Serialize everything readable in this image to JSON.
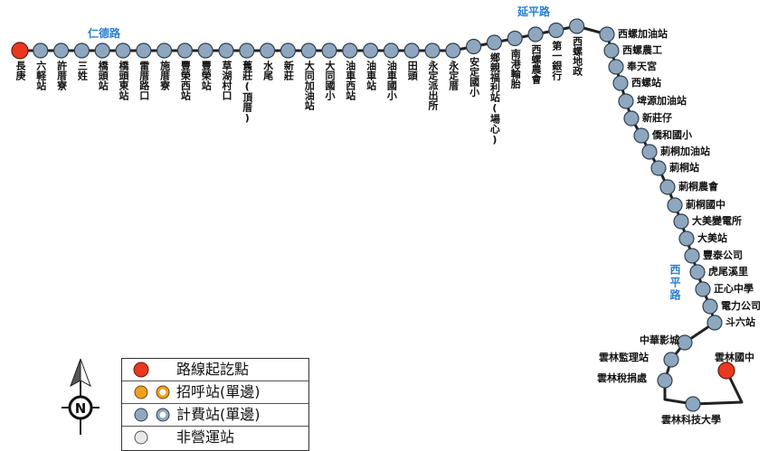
{
  "colors": {
    "route_line": "#222222",
    "stop_fill": "#8ea7bf",
    "stop_stroke": "#2f3f52",
    "terminal_fill": "#e8381f",
    "hail_fill": "#f0a020",
    "inactive_fill": "#e8e8e8",
    "road_label": "#2a7fd0"
  },
  "roads": {
    "rende": "仁德路",
    "yanping": "延平路",
    "xiping": "西平路"
  },
  "stops_top": [
    {
      "name": "長庚",
      "type": "terminal"
    },
    {
      "name": "六軽站",
      "type": "fare"
    },
    {
      "name": "許厝寮",
      "type": "fare"
    },
    {
      "name": "三姓",
      "type": "fare"
    },
    {
      "name": "橋頭站",
      "type": "fare"
    },
    {
      "name": "橋頭東站",
      "type": "fare"
    },
    {
      "name": "雷厝路口",
      "type": "fare"
    },
    {
      "name": "施厝寮",
      "type": "fare"
    },
    {
      "name": "豐榮西站",
      "type": "fare"
    },
    {
      "name": "豐榮站",
      "type": "fare"
    },
    {
      "name": "草湖村口",
      "type": "fare"
    },
    {
      "name": "舊莊(頂厝)",
      "type": "fare"
    },
    {
      "name": "水尾",
      "type": "fare"
    },
    {
      "name": "新莊",
      "type": "fare"
    },
    {
      "name": "大同加油站",
      "type": "fare"
    },
    {
      "name": "大同國小",
      "type": "fare"
    },
    {
      "name": "油車西站",
      "type": "fare"
    },
    {
      "name": "油車站",
      "type": "fare"
    },
    {
      "name": "油車國小",
      "type": "fare"
    },
    {
      "name": "田頭",
      "type": "fare"
    },
    {
      "name": "永定派出所",
      "type": "fare"
    },
    {
      "name": "永定厝",
      "type": "fare"
    },
    {
      "name": "安定國小",
      "type": "fare"
    },
    {
      "name": "鄉親福利站(場心)",
      "type": "fare"
    },
    {
      "name": "南港輪胎",
      "type": "fare"
    },
    {
      "name": "西螺農會",
      "type": "fare"
    },
    {
      "name": "第一銀行",
      "type": "fare"
    },
    {
      "name": "西螺地政",
      "type": "fare"
    }
  ],
  "stops_right": [
    {
      "name": "西螺加油站",
      "type": "fare"
    },
    {
      "name": "西螺農工",
      "type": "fare"
    },
    {
      "name": "奉天宮",
      "type": "fare"
    },
    {
      "name": "西螺站",
      "type": "fare"
    },
    {
      "name": "埤源加油站",
      "type": "fare"
    },
    {
      "name": "新莊仔",
      "type": "fare"
    },
    {
      "name": "僑和國小",
      "type": "fare"
    },
    {
      "name": "莿桐加油站",
      "type": "fare"
    },
    {
      "name": "莿桐站",
      "type": "fare"
    },
    {
      "name": "莿桐農會",
      "type": "fare"
    },
    {
      "name": "莿桐國中",
      "type": "fare"
    },
    {
      "name": "大美變電所",
      "type": "fare"
    },
    {
      "name": "大美站",
      "type": "fare"
    },
    {
      "name": "豐泰公司",
      "type": "fare"
    },
    {
      "name": "虎尾溪里",
      "type": "fare"
    },
    {
      "name": "正心中學",
      "type": "fare"
    },
    {
      "name": "電力公司",
      "type": "fare"
    },
    {
      "name": "斗六站",
      "type": "fare"
    }
  ],
  "stops_left": [
    {
      "name": "中華影城",
      "type": "fare"
    },
    {
      "name": "雲林監理站",
      "type": "fare"
    },
    {
      "name": "雲林稅捐處",
      "type": "fare"
    }
  ],
  "stops_bottom": [
    {
      "name": "雲林科技大學",
      "type": "fare"
    },
    {
      "name": "雲林國中",
      "type": "terminal"
    }
  ],
  "legend": [
    {
      "icon": "terminal",
      "label": "路線起訖點"
    },
    {
      "icon": "hail",
      "label": "招呼站(單邊)"
    },
    {
      "icon": "fare",
      "label": "計費站(單邊)"
    },
    {
      "icon": "inactive",
      "label": "非營運站"
    }
  ],
  "compass": {
    "letter": "N"
  }
}
